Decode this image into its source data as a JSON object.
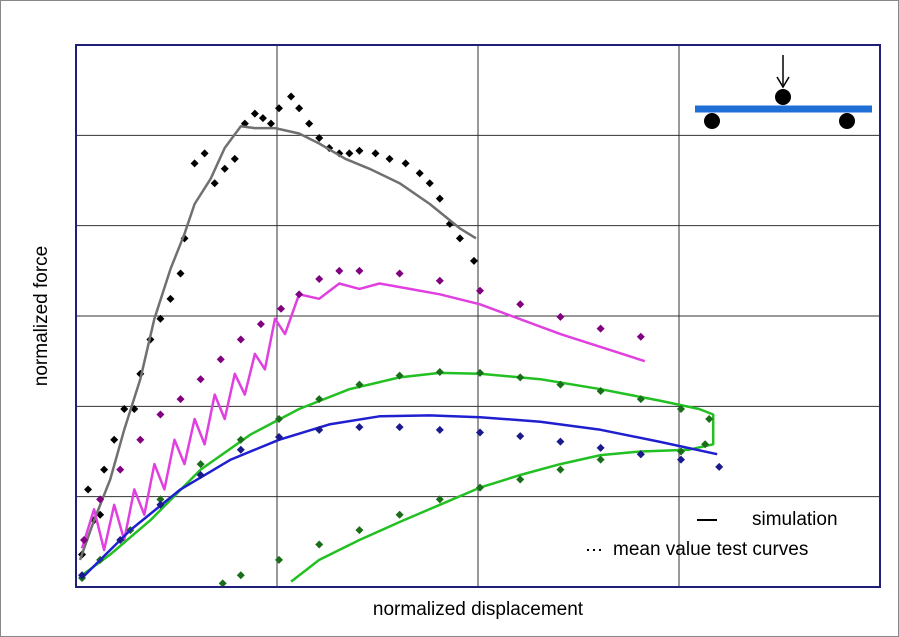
{
  "chart_data": {
    "type": "line",
    "x_label": "normalized displacement",
    "y_label": "normalized force",
    "xlim": [
      0,
      4
    ],
    "ylim": [
      0,
      6
    ],
    "xticks": [
      0,
      1,
      2,
      3,
      4
    ],
    "yticks": [
      0,
      1,
      2,
      3,
      4,
      5,
      6
    ],
    "grid": true,
    "legend": [
      {
        "label": "simulation",
        "style": "solid"
      },
      {
        "label": "mean value test curves",
        "style": "dotted"
      }
    ],
    "series": [
      {
        "style": "dotted",
        "color": "#000000",
        "x": [
          0.03,
          0.06,
          0.09,
          0.12,
          0.14,
          0.19,
          0.24,
          0.29,
          0.32,
          0.37,
          0.42,
          0.47,
          0.52,
          0.54,
          0.59,
          0.64,
          0.69,
          0.74,
          0.79,
          0.84,
          0.89,
          0.93,
          0.97,
          1.01,
          1.07,
          1.11,
          1.16,
          1.21,
          1.26,
          1.31,
          1.36,
          1.41,
          1.49,
          1.56,
          1.64,
          1.71,
          1.76,
          1.81,
          1.86,
          1.91,
          1.98
        ],
        "values": [
          0.36,
          1.08,
          0.74,
          0.8,
          1.3,
          1.63,
          1.97,
          1.97,
          2.36,
          2.74,
          2.97,
          3.19,
          3.47,
          3.86,
          4.69,
          4.8,
          4.47,
          4.63,
          4.74,
          5.13,
          5.24,
          5.19,
          5.13,
          5.3,
          5.43,
          5.3,
          5.13,
          4.97,
          4.86,
          4.8,
          4.8,
          4.83,
          4.8,
          4.74,
          4.69,
          4.58,
          4.47,
          4.3,
          4.02,
          3.86,
          3.61
        ]
      },
      {
        "style": "solid",
        "color": "#707070",
        "x": [
          0.02,
          0.09,
          0.17,
          0.24,
          0.32,
          0.39,
          0.47,
          0.54,
          0.59,
          0.67,
          0.74,
          0.82,
          0.89,
          0.99,
          1.11,
          1.21,
          1.34,
          1.46,
          1.61,
          1.76,
          1.91,
          1.99
        ],
        "values": [
          0.3,
          0.74,
          1.19,
          1.74,
          2.3,
          2.97,
          3.52,
          3.91,
          4.24,
          4.52,
          4.86,
          5.1,
          5.08,
          5.08,
          5.02,
          4.91,
          4.74,
          4.63,
          4.47,
          4.24,
          3.97,
          3.86
        ]
      },
      {
        "style": "solid",
        "color": "#e040e0",
        "x": [
          0.03,
          0.09,
          0.14,
          0.19,
          0.24,
          0.29,
          0.34,
          0.39,
          0.44,
          0.49,
          0.54,
          0.59,
          0.64,
          0.69,
          0.74,
          0.79,
          0.84,
          0.89,
          0.94,
          0.99,
          1.04,
          1.11,
          1.21,
          1.31,
          1.41,
          1.51,
          1.66,
          1.81,
          2.01,
          2.41,
          2.83
        ],
        "values": [
          0.43,
          0.86,
          0.41,
          0.91,
          0.52,
          1.08,
          0.8,
          1.36,
          1.08,
          1.63,
          1.36,
          1.86,
          1.58,
          2.13,
          1.86,
          2.36,
          2.13,
          2.58,
          2.41,
          2.97,
          2.8,
          3.24,
          3.19,
          3.36,
          3.3,
          3.36,
          3.3,
          3.24,
          3.13,
          2.8,
          2.5
        ]
      },
      {
        "style": "dotted",
        "color": "#800080",
        "x": [
          0.04,
          0.12,
          0.22,
          0.32,
          0.42,
          0.52,
          0.62,
          0.72,
          0.82,
          0.92,
          1.02,
          1.11,
          1.21,
          1.31,
          1.41,
          1.61,
          1.81,
          2.01,
          2.21,
          2.41,
          2.61,
          2.81
        ],
        "values": [
          0.52,
          0.97,
          1.3,
          1.63,
          1.91,
          2.08,
          2.3,
          2.52,
          2.74,
          2.91,
          3.08,
          3.24,
          3.41,
          3.5,
          3.5,
          3.47,
          3.39,
          3.28,
          3.13,
          2.99,
          2.86,
          2.77
        ]
      },
      {
        "style": "solid",
        "color": "#22c022",
        "x": [
          0.03,
          0.17,
          0.37,
          0.62,
          0.87,
          1.11,
          1.36,
          1.61,
          1.81,
          2.01,
          2.31,
          2.61,
          2.91,
          3.1,
          3.17,
          3.17,
          3.05,
          2.81,
          2.61,
          2.41,
          2.21,
          2.01,
          1.81,
          1.61,
          1.41,
          1.21,
          1.07
        ],
        "values": [
          0.13,
          0.36,
          0.74,
          1.3,
          1.69,
          1.97,
          2.19,
          2.32,
          2.37,
          2.36,
          2.3,
          2.19,
          2.06,
          1.97,
          1.91,
          1.58,
          1.52,
          1.5,
          1.46,
          1.36,
          1.24,
          1.1,
          0.91,
          0.72,
          0.52,
          0.3,
          0.06
        ]
      },
      {
        "style": "dotted",
        "color": "#1a6e1a",
        "x": [
          0.03,
          0.12,
          0.27,
          0.42,
          0.62,
          0.82,
          1.01,
          1.21,
          1.41,
          1.61,
          1.81,
          2.01,
          2.21,
          2.41,
          2.61,
          2.81,
          3.01,
          3.15,
          3.13,
          3.01,
          2.81,
          2.61,
          2.41,
          2.21,
          2.01,
          1.81,
          1.61,
          1.41,
          1.21,
          1.01,
          0.82,
          0.73
        ],
        "values": [
          0.1,
          0.3,
          0.63,
          0.97,
          1.36,
          1.63,
          1.86,
          2.08,
          2.24,
          2.34,
          2.38,
          2.37,
          2.32,
          2.24,
          2.17,
          2.08,
          1.97,
          1.86,
          1.58,
          1.5,
          1.47,
          1.41,
          1.3,
          1.19,
          1.1,
          0.97,
          0.8,
          0.63,
          0.47,
          0.3,
          0.13,
          0.04
        ]
      },
      {
        "style": "solid",
        "color": "#1f1fd0",
        "x": [
          0.03,
          0.27,
          0.52,
          0.77,
          1.01,
          1.26,
          1.51,
          1.76,
          2.01,
          2.31,
          2.61,
          2.9,
          3.19
        ],
        "values": [
          0.1,
          0.63,
          1.08,
          1.41,
          1.63,
          1.8,
          1.89,
          1.9,
          1.88,
          1.83,
          1.74,
          1.61,
          1.47
        ]
      },
      {
        "style": "dotted",
        "color": "#1a1a8c",
        "x": [
          0.03,
          0.22,
          0.42,
          0.62,
          0.82,
          1.01,
          1.21,
          1.41,
          1.61,
          1.81,
          2.01,
          2.21,
          2.41,
          2.61,
          2.81,
          3.01,
          3.2
        ],
        "values": [
          0.13,
          0.52,
          0.91,
          1.24,
          1.52,
          1.66,
          1.74,
          1.77,
          1.77,
          1.74,
          1.71,
          1.67,
          1.61,
          1.54,
          1.47,
          1.41,
          1.33
        ]
      }
    ]
  }
}
